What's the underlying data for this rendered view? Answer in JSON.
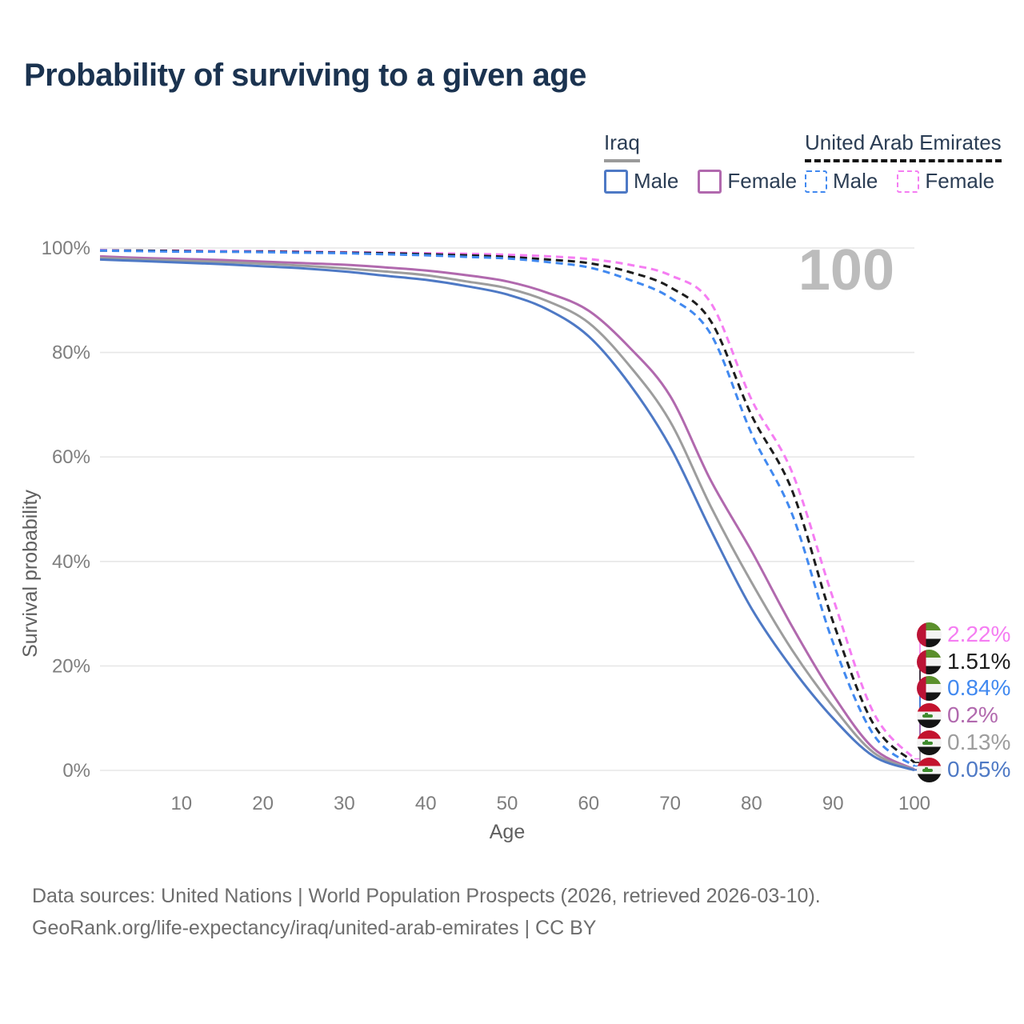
{
  "title": "Probability of surviving to a given age",
  "watermark": "100",
  "legend": {
    "groups": [
      {
        "name": "Iraq",
        "line_style": "solid",
        "underline_color": "#9a9a9a",
        "items": [
          {
            "label": "Male",
            "color": "#4e79c5"
          },
          {
            "label": "Female",
            "color": "#b169ae"
          }
        ]
      },
      {
        "name": "United Arab Emirates",
        "line_style": "dashed",
        "underline_color": "#141414",
        "items": [
          {
            "label": "Male",
            "color": "#4189f0"
          },
          {
            "label": "Female",
            "color": "#f57df2"
          }
        ]
      }
    ]
  },
  "chart_data": {
    "type": "line",
    "title": "Probability of surviving to a given age",
    "xlabel": "Age",
    "ylabel": "Survival probability",
    "xlim": [
      0,
      100
    ],
    "ylim": [
      0,
      100
    ],
    "x_ticks": [
      10,
      20,
      30,
      40,
      50,
      60,
      70,
      80,
      90,
      100
    ],
    "y_gridlines": [
      0,
      20,
      40,
      60,
      80,
      100
    ],
    "grid": "horizontal-only",
    "legend_position": "top-right",
    "x": [
      0,
      5,
      10,
      15,
      20,
      25,
      30,
      35,
      40,
      45,
      50,
      55,
      60,
      65,
      70,
      75,
      80,
      85,
      90,
      95,
      100
    ],
    "series": [
      {
        "name": "United Arab Emirates Female",
        "country": "United Arab Emirates",
        "sex": "Female",
        "color": "#f57df2",
        "dash": true,
        "values": [
          99.6,
          99.5,
          99.5,
          99.4,
          99.4,
          99.3,
          99.2,
          99.1,
          99.0,
          98.9,
          98.7,
          98.4,
          97.9,
          96.8,
          94.8,
          89.5,
          71.0,
          57.0,
          33.0,
          11.0,
          2.22
        ]
      },
      {
        "name": "United Arab Emirates",
        "country": "United Arab Emirates",
        "sex": "Both",
        "color": "#1c1c1c",
        "dash": true,
        "values": [
          99.5,
          99.5,
          99.4,
          99.3,
          99.3,
          99.2,
          99.1,
          99.0,
          98.8,
          98.6,
          98.3,
          97.8,
          97.1,
          95.4,
          92.5,
          86.0,
          68.0,
          53.5,
          28.5,
          8.8,
          1.51
        ]
      },
      {
        "name": "United Arab Emirates Male",
        "country": "United Arab Emirates",
        "sex": "Male",
        "color": "#4189f0",
        "dash": true,
        "values": [
          99.5,
          99.4,
          99.3,
          99.3,
          99.2,
          99.1,
          99.0,
          98.8,
          98.6,
          98.3,
          98.0,
          97.3,
          96.3,
          93.9,
          90.5,
          83.5,
          64.5,
          49.0,
          24.5,
          6.8,
          0.84
        ]
      },
      {
        "name": "Iraq Female",
        "country": "Iraq",
        "sex": "Female",
        "color": "#b169ae",
        "dash": false,
        "values": [
          98.4,
          98.1,
          97.9,
          97.7,
          97.4,
          97.1,
          96.8,
          96.3,
          95.7,
          94.8,
          93.6,
          91.4,
          88.0,
          81.0,
          71.7,
          55.5,
          42.0,
          27.5,
          14.5,
          4.2,
          0.2
        ]
      },
      {
        "name": "Iraq",
        "country": "Iraq",
        "sex": "Both",
        "color": "#9d9d9d",
        "dash": false,
        "values": [
          98.1,
          97.8,
          97.6,
          97.3,
          97.0,
          96.6,
          96.1,
          95.5,
          94.8,
          93.6,
          92.3,
          89.8,
          85.7,
          77.5,
          66.8,
          50.5,
          36.0,
          23.0,
          12.2,
          3.4,
          0.13
        ]
      },
      {
        "name": "Iraq Male",
        "country": "Iraq",
        "sex": "Male",
        "color": "#4e79c5",
        "dash": false,
        "values": [
          97.8,
          97.5,
          97.2,
          96.9,
          96.5,
          96.1,
          95.5,
          94.7,
          93.9,
          92.7,
          91.1,
          88.2,
          83.1,
          74.0,
          62.0,
          46.0,
          31.0,
          19.5,
          10.0,
          2.7,
          0.05
        ]
      }
    ],
    "end_labels": [
      {
        "label": "2.22%",
        "color": "#f57df2",
        "flag": "uae",
        "series": "United Arab Emirates Female"
      },
      {
        "label": "1.51%",
        "color": "#1c1c1c",
        "flag": "uae",
        "series": "United Arab Emirates"
      },
      {
        "label": "0.84%",
        "color": "#4189f0",
        "flag": "uae",
        "series": "United Arab Emirates Male"
      },
      {
        "label": "0.2%",
        "color": "#b169ae",
        "flag": "iraq",
        "series": "Iraq Female"
      },
      {
        "label": "0.13%",
        "color": "#9d9d9d",
        "flag": "iraq",
        "series": "Iraq"
      },
      {
        "label": "0.05%",
        "color": "#4e79c5",
        "flag": "iraq",
        "series": "Iraq Male"
      }
    ]
  },
  "footer": {
    "line1": "Data sources: United Nations | World Population Prospects (2026, retrieved 2026-03-10).",
    "line2": "GeoRank.org/life-expectancy/iraq/united-arab-emirates | CC BY"
  }
}
